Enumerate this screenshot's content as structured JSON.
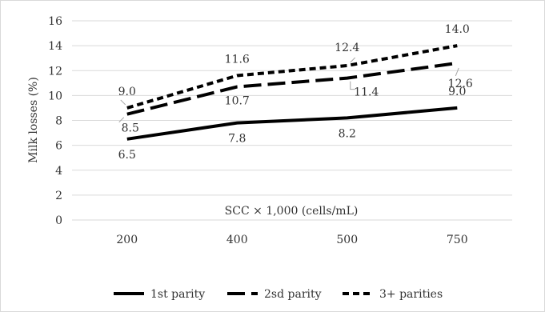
{
  "chart_data": {
    "type": "line",
    "categories": [
      "200",
      "400",
      "500",
      "750"
    ],
    "series": [
      {
        "name": "1st parity",
        "values": [
          6.5,
          7.8,
          8.2,
          9.0
        ],
        "labels": [
          "6.5",
          "7.8",
          "8.2",
          "9.0"
        ],
        "dash": "solid"
      },
      {
        "name": "2sd parity",
        "values": [
          8.5,
          10.7,
          11.4,
          12.6
        ],
        "labels": [
          "8.5",
          "10.7",
          "11.4",
          "12.6"
        ],
        "dash": "long-dash"
      },
      {
        "name": "3+ parities",
        "values": [
          9.0,
          11.6,
          12.4,
          14.0
        ],
        "labels": [
          "9.0",
          "11.6",
          "12.4",
          "14.0"
        ],
        "dash": "short-dash"
      }
    ],
    "yticks": [
      "0",
      "2",
      "4",
      "6",
      "8",
      "10",
      "12",
      "14",
      "16"
    ],
    "ylim": [
      0,
      16
    ],
    "xlabel": "SCC × 1,000 (cells/mL)",
    "ylabel": "Milk losses (%)",
    "grid": true,
    "legend_position": "bottom",
    "line_color": "#000000",
    "grid_color": "#d9d9d9"
  }
}
